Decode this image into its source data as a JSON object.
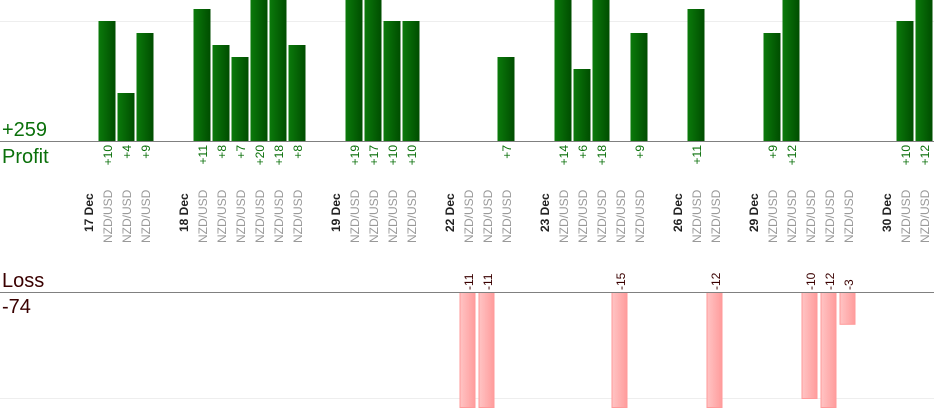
{
  "chart_data": {
    "type": "bar",
    "title": "",
    "profit": {
      "label": "Profit",
      "total": "+259",
      "color": "#006400"
    },
    "loss": {
      "label": "Loss",
      "total": "-74",
      "color": "#ffaaaa"
    },
    "days": [
      {
        "date": "17 Dec",
        "trades": [
          {
            "pair": "NZD/USD",
            "pl": 10
          },
          {
            "pair": "NZD/USD",
            "pl": 4
          },
          {
            "pair": "NZD/USD",
            "pl": 9
          }
        ]
      },
      {
        "date": "18 Dec",
        "trades": [
          {
            "pair": "NZD/USD",
            "pl": 11
          },
          {
            "pair": "NZD/USD",
            "pl": 8
          },
          {
            "pair": "NZD/USD",
            "pl": 7
          },
          {
            "pair": "NZD/USD",
            "pl": 20
          },
          {
            "pair": "NZD/USD",
            "pl": 18
          },
          {
            "pair": "NZD/USD",
            "pl": 8
          }
        ]
      },
      {
        "date": "19 Dec",
        "trades": [
          {
            "pair": "NZD/USD",
            "pl": 19
          },
          {
            "pair": "NZD/USD",
            "pl": 17
          },
          {
            "pair": "NZD/USD",
            "pl": 10
          },
          {
            "pair": "NZD/USD",
            "pl": 10
          }
        ]
      },
      {
        "date": "22 Dec",
        "trades": [
          {
            "pair": "NZD/USD",
            "pl": -11
          },
          {
            "pair": "NZD/USD",
            "pl": -11
          },
          {
            "pair": "NZD/USD",
            "pl": 7
          }
        ]
      },
      {
        "date": "23 Dec",
        "trades": [
          {
            "pair": "NZD/USD",
            "pl": 14
          },
          {
            "pair": "NZD/USD",
            "pl": 6
          },
          {
            "pair": "NZD/USD",
            "pl": 18
          },
          {
            "pair": "NZD/USD",
            "pl": -15
          },
          {
            "pair": "NZD/USD",
            "pl": 9
          }
        ]
      },
      {
        "date": "26 Dec",
        "trades": [
          {
            "pair": "NZD/USD",
            "pl": 11
          },
          {
            "pair": "NZD/USD",
            "pl": -12
          }
        ]
      },
      {
        "date": "29 Dec",
        "trades": [
          {
            "pair": "NZD/USD",
            "pl": 9
          },
          {
            "pair": "NZD/USD",
            "pl": 12
          },
          {
            "pair": "NZD/USD",
            "pl": -10
          },
          {
            "pair": "NZD/USD",
            "pl": -12
          },
          {
            "pair": "NZD/USD",
            "pl": -3
          }
        ]
      },
      {
        "date": "30 Dec",
        "trades": [
          {
            "pair": "NZD/USD",
            "pl": 10
          },
          {
            "pair": "NZD/USD",
            "pl": 12
          }
        ]
      }
    ]
  }
}
